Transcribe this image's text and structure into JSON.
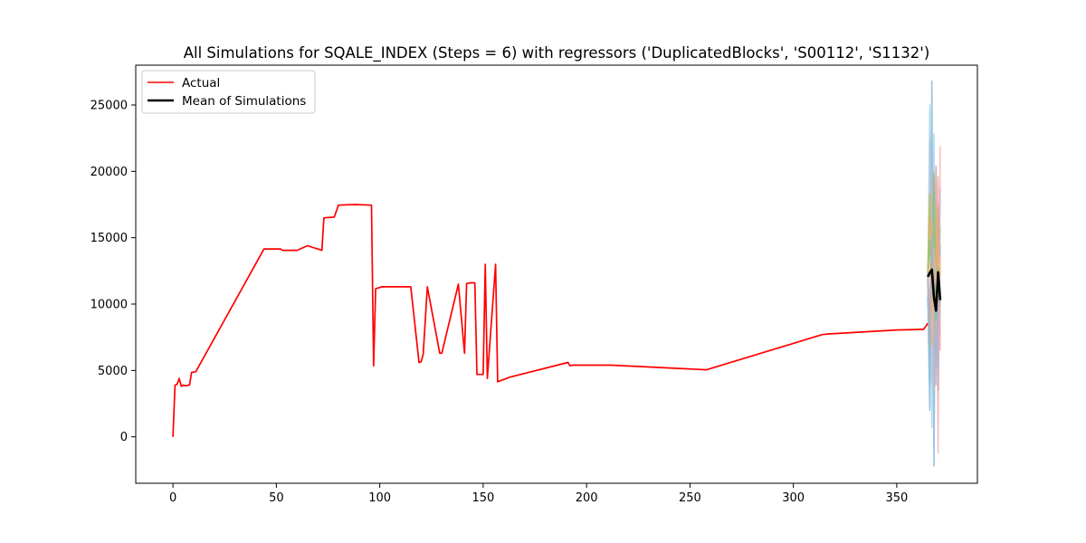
{
  "chart_data": {
    "type": "line",
    "title": "All Simulations for SQALE_INDEX (Steps = 6) with regressors ('DuplicatedBlocks', 'S00112', 'S1132')",
    "xlabel": "",
    "ylabel": "",
    "xlim": [
      -18,
      389
    ],
    "ylim": [
      -3500,
      28000
    ],
    "x_ticks": [
      0,
      50,
      100,
      150,
      200,
      250,
      300,
      350
    ],
    "y_ticks": [
      0,
      5000,
      10000,
      15000,
      20000,
      25000
    ],
    "grid": false,
    "legend": {
      "position": "top-left",
      "entries": [
        "Actual",
        "Mean of Simulations"
      ]
    },
    "series": [
      {
        "name": "Actual",
        "color": "#ff0000",
        "points": [
          [
            0,
            0
          ],
          [
            1,
            3900
          ],
          [
            2,
            3950
          ],
          [
            3,
            4400
          ],
          [
            4,
            3800
          ],
          [
            5,
            3900
          ],
          [
            6,
            3850
          ],
          [
            8,
            3900
          ],
          [
            9,
            4850
          ],
          [
            11,
            4900
          ],
          [
            44,
            14150
          ],
          [
            52,
            14150
          ],
          [
            53,
            14050
          ],
          [
            60,
            14050
          ],
          [
            65,
            14400
          ],
          [
            72,
            14050
          ],
          [
            73,
            16500
          ],
          [
            78,
            16550
          ],
          [
            80,
            17450
          ],
          [
            88,
            17500
          ],
          [
            96,
            17450
          ],
          [
            97,
            5350
          ],
          [
            98,
            11150
          ],
          [
            101,
            11300
          ],
          [
            115,
            11300
          ],
          [
            119,
            5600
          ],
          [
            120,
            5650
          ],
          [
            121,
            6200
          ],
          [
            123,
            11300
          ],
          [
            129,
            6300
          ],
          [
            130,
            6300
          ],
          [
            138,
            11500
          ],
          [
            141,
            6300
          ],
          [
            142,
            11550
          ],
          [
            144,
            11600
          ],
          [
            146,
            11600
          ],
          [
            147,
            4700
          ],
          [
            150,
            4700
          ],
          [
            151,
            13000
          ],
          [
            152,
            4400
          ],
          [
            156,
            13000
          ],
          [
            157,
            4150
          ],
          [
            163,
            4500
          ],
          [
            191,
            5600
          ],
          [
            192,
            5350
          ],
          [
            193,
            5400
          ],
          [
            212,
            5400
          ],
          [
            258,
            5050
          ],
          [
            314,
            7700
          ],
          [
            317,
            7750
          ],
          [
            350,
            8050
          ],
          [
            363,
            8100
          ],
          [
            365,
            8550
          ]
        ]
      },
      {
        "name": "Mean of Simulations",
        "color": "#000000",
        "points": [
          [
            365,
            12050
          ],
          [
            366,
            12350
          ],
          [
            367,
            12600
          ],
          [
            368,
            10500
          ],
          [
            369,
            9500
          ],
          [
            370,
            12400
          ],
          [
            371,
            10300
          ]
        ]
      }
    ],
    "simulations": [
      {
        "color": "#9ecae1",
        "values": [
          [
            365,
            9800
          ],
          [
            366,
            25000
          ],
          [
            367,
            700
          ],
          [
            368,
            22800
          ],
          [
            369,
            5200
          ],
          [
            370,
            17200
          ],
          [
            371,
            9100
          ]
        ]
      },
      {
        "color": "#6baed6",
        "values": [
          [
            365,
            10500
          ],
          [
            366,
            2000
          ],
          [
            367,
            26800
          ],
          [
            368,
            -2200
          ],
          [
            369,
            20300
          ],
          [
            370,
            3500
          ],
          [
            371,
            14500
          ]
        ]
      },
      {
        "color": "#a6cee3",
        "values": [
          [
            365,
            11500
          ],
          [
            366,
            22400
          ],
          [
            367,
            4100
          ],
          [
            368,
            18900
          ],
          [
            369,
            6200
          ],
          [
            370,
            16800
          ],
          [
            371,
            7600
          ]
        ]
      },
      {
        "color": "#f4a6a6",
        "values": [
          [
            365,
            12500
          ],
          [
            366,
            8100
          ],
          [
            367,
            19200
          ],
          [
            368,
            3600
          ],
          [
            369,
            20400
          ],
          [
            370,
            -1200
          ],
          [
            371,
            21900
          ]
        ]
      },
      {
        "color": "#fdae6b",
        "values": [
          [
            365,
            12000
          ],
          [
            366,
            16500
          ],
          [
            367,
            6800
          ],
          [
            368,
            19500
          ],
          [
            369,
            7200
          ],
          [
            370,
            14600
          ],
          [
            371,
            10200
          ]
        ]
      },
      {
        "color": "#9fd18b",
        "values": [
          [
            365,
            11800
          ],
          [
            366,
            6400
          ],
          [
            367,
            18600
          ],
          [
            368,
            8400
          ],
          [
            369,
            17400
          ],
          [
            370,
            9000
          ],
          [
            371,
            15800
          ]
        ]
      },
      {
        "color": "#bcbd22",
        "values": [
          [
            365,
            12300
          ],
          [
            366,
            18300
          ],
          [
            367,
            9200
          ],
          [
            368,
            15600
          ],
          [
            369,
            10100
          ],
          [
            370,
            17500
          ],
          [
            371,
            12200
          ]
        ]
      },
      {
        "color": "#c5b0d5",
        "values": [
          [
            365,
            12100
          ],
          [
            366,
            9600
          ],
          [
            367,
            21500
          ],
          [
            368,
            6100
          ],
          [
            369,
            15200
          ],
          [
            370,
            5200
          ],
          [
            371,
            18800
          ]
        ]
      },
      {
        "color": "#74c476",
        "values": [
          [
            365,
            12200
          ],
          [
            366,
            14800
          ],
          [
            367,
            11000
          ],
          [
            368,
            19900
          ],
          [
            369,
            8800
          ],
          [
            370,
            12800
          ],
          [
            371,
            9900
          ]
        ]
      },
      {
        "color": "#fb9a99",
        "values": [
          [
            365,
            12000
          ],
          [
            366,
            7500
          ],
          [
            367,
            16400
          ],
          [
            368,
            10900
          ],
          [
            369,
            12400
          ],
          [
            370,
            19600
          ],
          [
            371,
            6500
          ]
        ]
      },
      {
        "color": "#ffbb78",
        "values": [
          [
            365,
            11900
          ],
          [
            366,
            13100
          ],
          [
            367,
            8400
          ],
          [
            368,
            14200
          ],
          [
            369,
            11600
          ],
          [
            370,
            10400
          ],
          [
            371,
            13600
          ]
        ]
      },
      {
        "color": "#8fb8d8",
        "values": [
          [
            365,
            12400
          ],
          [
            366,
            4200
          ],
          [
            367,
            15200
          ],
          [
            368,
            12800
          ],
          [
            369,
            3900
          ],
          [
            370,
            11900
          ],
          [
            371,
            11200
          ]
        ]
      }
    ]
  }
}
